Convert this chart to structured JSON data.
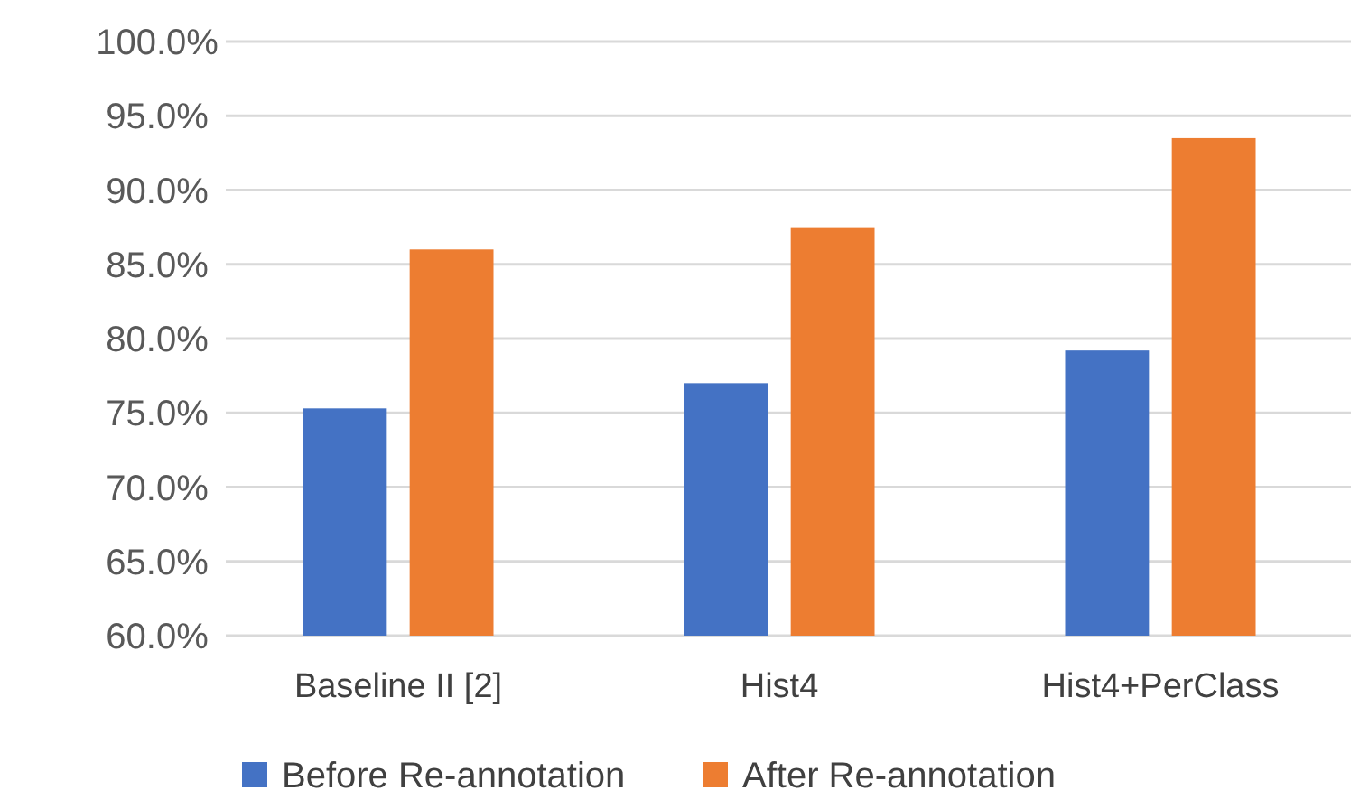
{
  "chart_data": {
    "type": "bar",
    "categories": [
      "Baseline II [2]",
      "Hist4",
      "Hist4+PerClass"
    ],
    "series": [
      {
        "name": "Before Re-annotation",
        "color": "#4472c4",
        "values": [
          75.3,
          77.0,
          79.2
        ]
      },
      {
        "name": "After Re-annotation",
        "color": "#ed7d31",
        "values": [
          86.0,
          87.5,
          93.5
        ]
      }
    ],
    "ylim": [
      60,
      100
    ],
    "yticks": [
      {
        "value": 60,
        "label": "60.0%"
      },
      {
        "value": 65,
        "label": "65.0%"
      },
      {
        "value": 70,
        "label": "70.0%"
      },
      {
        "value": 75,
        "label": "75.0%"
      },
      {
        "value": 80,
        "label": "80.0%"
      },
      {
        "value": 85,
        "label": "85.0%"
      },
      {
        "value": 90,
        "label": "90.0%"
      },
      {
        "value": 95,
        "label": "95.0%"
      },
      {
        "value": 100,
        "label": "100.0%"
      }
    ],
    "grid": "y",
    "legend": "bottom"
  }
}
